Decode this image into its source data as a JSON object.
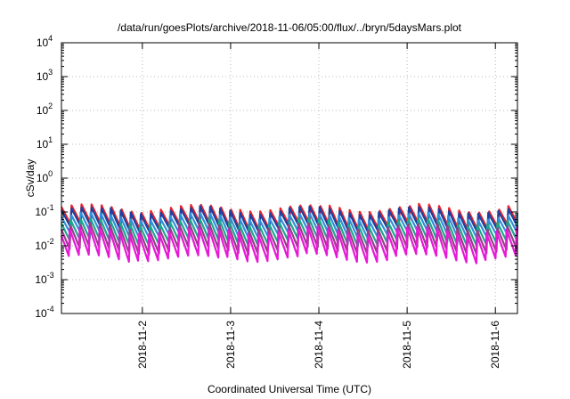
{
  "chart_data": {
    "type": "line",
    "title": "/data/run/goesPlots/archive/2018-11-06/05:00/flux/../bryn/5daysMars.plot",
    "xlabel": "Coordinated Universal Time (UTC)",
    "ylabel": "cSv/day",
    "x_scale": "time",
    "x_range": [
      "2018-11-01T02:00",
      "2018-11-06T06:00"
    ],
    "y_scale": "log",
    "ylim": [
      0.0001,
      10000
    ],
    "y_ticks": [
      {
        "base": "10",
        "exp": "-4"
      },
      {
        "base": "10",
        "exp": "-3"
      },
      {
        "base": "10",
        "exp": "-2"
      },
      {
        "base": "10",
        "exp": "-1"
      },
      {
        "base": "10",
        "exp": "0"
      },
      {
        "base": "10",
        "exp": "1"
      },
      {
        "base": "10",
        "exp": "2"
      },
      {
        "base": "10",
        "exp": "3"
      },
      {
        "base": "10",
        "exp": "4"
      }
    ],
    "x_ticks": [
      {
        "label": "2018-11-2",
        "value": "2018-11-02T00:00"
      },
      {
        "label": "2018-11-3",
        "value": "2018-11-03T00:00"
      },
      {
        "label": "2018-11-4",
        "value": "2018-11-04T00:00"
      },
      {
        "label": "2018-11-5",
        "value": "2018-11-05T00:00"
      },
      {
        "label": "2018-11-6",
        "value": "2018-11-06T00:00"
      }
    ],
    "grid": true,
    "sawtooth_period_hours": 2.7,
    "series": [
      {
        "color": "#e8232a",
        "peak": 0.14,
        "trough": 0.035
      },
      {
        "color": "#1f3fa0",
        "peak": 0.12,
        "trough": 0.03
      },
      {
        "color": "#2f8fd8",
        "peak": 0.08,
        "trough": 0.02
      },
      {
        "color": "#1aa88a",
        "peak": 0.055,
        "trough": 0.012
      },
      {
        "color": "#9a3a8a",
        "peak": 0.04,
        "trough": 0.007
      },
      {
        "color": "#e619d6",
        "peak": 0.03,
        "trough": 0.004
      }
    ]
  }
}
